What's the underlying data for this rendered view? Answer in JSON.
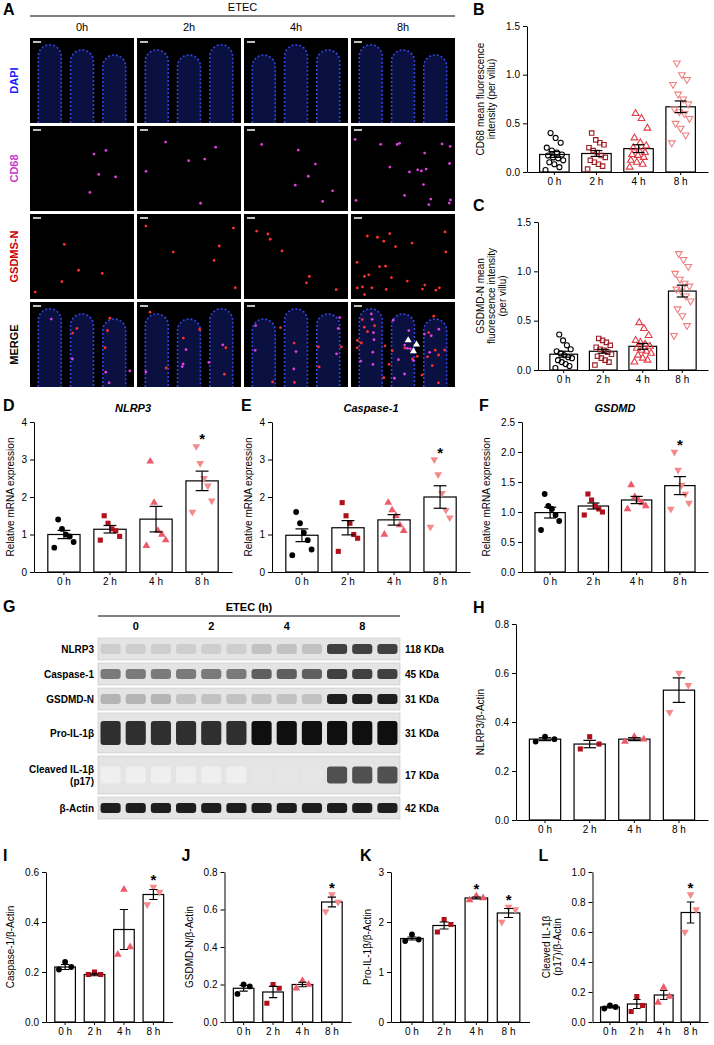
{
  "chart_data": [
    {
      "type": "bar",
      "panel": "B",
      "y_label": "CD68 mean fluorescence intensity (per villu)",
      "categories": [
        "0 h",
        "2 h",
        "4 h",
        "8 h"
      ],
      "values": [
        0.18,
        0.19,
        0.24,
        0.67
      ],
      "errors": [
        0.03,
        0.03,
        0.04,
        0.06
      ],
      "points": [
        [
          0.02,
          0.05,
          0.08,
          0.1,
          0.12,
          0.14,
          0.15,
          0.17,
          0.18,
          0.2,
          0.22,
          0.25,
          0.3,
          0.35,
          0.4
        ],
        [
          0.03,
          0.06,
          0.08,
          0.1,
          0.12,
          0.15,
          0.17,
          0.2,
          0.22,
          0.25,
          0.28,
          0.3,
          0.33,
          0.4
        ],
        [
          0.05,
          0.08,
          0.1,
          0.12,
          0.15,
          0.17,
          0.18,
          0.2,
          0.22,
          0.25,
          0.27,
          0.3,
          0.35,
          0.45,
          0.55,
          0.6
        ],
        [
          0.3,
          0.38,
          0.45,
          0.5,
          0.55,
          0.6,
          0.62,
          0.65,
          0.7,
          0.75,
          0.8,
          0.9,
          0.95,
          1.0,
          1.12
        ]
      ],
      "colors": [
        "#000000",
        "#a01c24",
        "#e23b46",
        "#f08080"
      ],
      "marker": "hollow",
      "ylim": [
        0,
        1.5
      ],
      "yticks": [
        {
          "value": 0,
          "label": "0.0"
        },
        0.5,
        {
          "value": 1,
          "label": "1.0"
        },
        1.5
      ]
    },
    {
      "type": "bar",
      "panel": "C",
      "y_label": "GSDMD-N mean fluorescence intensity (per villu)",
      "categories": [
        "0 h",
        "2 h",
        "4 h",
        "8 h"
      ],
      "values": [
        0.16,
        0.19,
        0.24,
        0.8
      ],
      "errors": [
        0.03,
        0.02,
        0.03,
        0.06
      ],
      "points": [
        [
          0.02,
          0.04,
          0.06,
          0.08,
          0.1,
          0.12,
          0.13,
          0.15,
          0.17,
          0.19,
          0.21,
          0.25,
          0.3,
          0.36
        ],
        [
          0.05,
          0.08,
          0.1,
          0.12,
          0.14,
          0.16,
          0.18,
          0.2,
          0.21,
          0.23,
          0.25,
          0.28,
          0.3,
          0.32
        ],
        [
          0.08,
          0.1,
          0.12,
          0.15,
          0.17,
          0.19,
          0.2,
          0.22,
          0.24,
          0.26,
          0.28,
          0.3,
          0.35,
          0.42,
          0.48
        ],
        [
          0.35,
          0.45,
          0.55,
          0.62,
          0.7,
          0.75,
          0.8,
          0.82,
          0.85,
          0.88,
          0.92,
          0.98,
          1.05,
          1.12,
          1.18
        ]
      ],
      "colors": [
        "#000000",
        "#a01c24",
        "#e23b46",
        "#f08080"
      ],
      "marker": "hollow",
      "ylim": [
        0,
        1.5
      ],
      "yticks": [
        {
          "value": 0,
          "label": "0.0"
        },
        0.5,
        {
          "value": 1,
          "label": "1.0"
        },
        1.5
      ]
    },
    {
      "type": "bar",
      "panel": "D",
      "title": "NLRP3",
      "y_label": "Relative mRNA expression",
      "categories": [
        "0 h",
        "2 h",
        "4 h",
        "8 h"
      ],
      "values": [
        1.0,
        1.14,
        1.41,
        2.43
      ],
      "errors": [
        0.11,
        0.1,
        0.34,
        0.26
      ],
      "points": [
        [
          0.65,
          0.8,
          0.95,
          1.0,
          1.15,
          1.4
        ],
        [
          0.85,
          0.95,
          1.1,
          1.15,
          1.3,
          1.5
        ],
        [
          0.7,
          0.85,
          1.0,
          1.1,
          1.85,
          2.95
        ],
        [
          1.6,
          1.9,
          2.3,
          2.5,
          2.9,
          3.35
        ]
      ],
      "colors": [
        "#000000",
        "#b0101c",
        "#ee5a6a",
        "#f48a8a"
      ],
      "marker": "filled",
      "ylim": [
        0,
        4
      ],
      "yticks": [
        0,
        1,
        2,
        3,
        4
      ],
      "annotations": [
        {
          "x": "8 h",
          "text": "*"
        }
      ]
    },
    {
      "type": "bar",
      "panel": "E",
      "title": "Caspase-1",
      "y_label": "Relative mRNA expression",
      "categories": [
        "0 h",
        "2 h",
        "4 h",
        "8 h"
      ],
      "values": [
        0.98,
        1.18,
        1.39,
        2.0
      ],
      "errors": [
        0.17,
        0.19,
        0.14,
        0.3
      ],
      "points": [
        [
          0.45,
          0.6,
          0.85,
          1.05,
          1.3,
          1.6
        ],
        [
          0.55,
          0.9,
          1.0,
          1.3,
          1.5,
          1.85
        ],
        [
          1.0,
          1.1,
          1.25,
          1.5,
          1.65,
          1.85
        ],
        [
          1.2,
          1.45,
          1.65,
          2.1,
          2.6,
          3.0
        ]
      ],
      "colors": [
        "#000000",
        "#b0101c",
        "#ee5a6a",
        "#f48a8a"
      ],
      "marker": "filled",
      "ylim": [
        0,
        4
      ],
      "yticks": [
        0,
        1,
        2,
        3,
        4
      ],
      "annotations": [
        {
          "x": "8 h",
          "text": "*"
        }
      ]
    },
    {
      "type": "bar",
      "panel": "F",
      "title": "GSDMD",
      "y_label": "Relative mRNA expression",
      "categories": [
        "0 h",
        "2 h",
        "4 h",
        "8 h"
      ],
      "values": [
        0.99,
        1.1,
        1.2,
        1.44
      ],
      "errors": [
        0.09,
        0.05,
        0.06,
        0.15
      ],
      "points": [
        [
          0.7,
          0.85,
          0.95,
          1.05,
          1.1,
          1.3
        ],
        [
          0.95,
          1.0,
          1.05,
          1.1,
          1.2,
          1.3
        ],
        [
          1.05,
          1.1,
          1.15,
          1.2,
          1.25,
          1.45
        ],
        [
          1.05,
          1.15,
          1.3,
          1.45,
          1.7,
          2.0
        ]
      ],
      "colors": [
        "#000000",
        "#b0101c",
        "#ee5a6a",
        "#f48a8a"
      ],
      "marker": "filled",
      "ylim": [
        0,
        2.5
      ],
      "yticks": [
        {
          "value": 0,
          "label": "0.0"
        },
        0.5,
        {
          "value": 1,
          "label": "1.0"
        },
        1.5,
        {
          "value": 2,
          "label": "2.0"
        },
        2.5
      ],
      "annotations": [
        {
          "x": "8 h",
          "text": "*"
        }
      ]
    },
    {
      "type": "bar",
      "panel": "H",
      "y_label": "NLRP3/β-Actin",
      "categories": [
        "0 h",
        "2 h",
        "4 h",
        "8 h"
      ],
      "values": [
        0.33,
        0.31,
        0.33,
        0.53
      ],
      "errors": [
        0.006,
        0.015,
        0.006,
        0.05
      ],
      "points": [
        [
          0.32,
          0.33,
          0.34
        ],
        [
          0.29,
          0.31,
          0.34
        ],
        [
          0.32,
          0.33,
          0.34
        ],
        [
          0.44,
          0.55,
          0.6
        ]
      ],
      "colors": [
        "#000000",
        "#b0101c",
        "#ee5a6a",
        "#f48a8a"
      ],
      "marker": "filled",
      "ylim": [
        0,
        0.8
      ],
      "yticks": [
        {
          "value": 0,
          "label": "0.0"
        },
        0.2,
        0.4,
        0.6,
        0.8
      ]
    },
    {
      "type": "bar",
      "panel": "I",
      "y_label": "Caspase-1/β-Actin",
      "categories": [
        "0 h",
        "2 h",
        "4 h",
        "8 h"
      ],
      "values": [
        0.22,
        0.19,
        0.37,
        0.51
      ],
      "errors": [
        0.01,
        0.005,
        0.08,
        0.02
      ],
      "points": [
        [
          0.21,
          0.22,
          0.24
        ],
        [
          0.19,
          0.19,
          0.2
        ],
        [
          0.27,
          0.3,
          0.53
        ],
        [
          0.47,
          0.52,
          0.54
        ]
      ],
      "colors": [
        "#000000",
        "#b0101c",
        "#ee5a6a",
        "#f48a8a"
      ],
      "marker": "filled",
      "ylim": [
        0,
        0.6
      ],
      "yticks": [
        {
          "value": 0,
          "label": "0.0"
        },
        0.2,
        0.4,
        0.6
      ],
      "annotations": [
        {
          "x": "8 h",
          "text": "*"
        }
      ]
    },
    {
      "type": "bar",
      "panel": "J",
      "y_label": "GSDMD-N/β-Actin",
      "categories": [
        "0 h",
        "2 h",
        "4 h",
        "8 h"
      ],
      "values": [
        0.18,
        0.16,
        0.2,
        0.64
      ],
      "errors": [
        0.015,
        0.03,
        0.012,
        0.026
      ],
      "points": [
        [
          0.15,
          0.19,
          0.2
        ],
        [
          0.1,
          0.18,
          0.2
        ],
        [
          0.18,
          0.2,
          0.22
        ],
        [
          0.59,
          0.64,
          0.68
        ]
      ],
      "colors": [
        "#000000",
        "#b0101c",
        "#ee5a6a",
        "#f48a8a"
      ],
      "marker": "filled",
      "ylim": [
        0,
        0.8
      ],
      "yticks": [
        {
          "value": 0,
          "label": "0.0"
        },
        0.2,
        0.4,
        0.6,
        0.8
      ],
      "annotations": [
        {
          "x": "8 h",
          "text": "*"
        }
      ]
    },
    {
      "type": "bar",
      "panel": "K",
      "y_label": "Pro-IL-1β/β-Actin",
      "categories": [
        "0 h",
        "2 h",
        "4 h",
        "8 h"
      ],
      "values": [
        1.67,
        1.93,
        2.48,
        2.18
      ],
      "errors": [
        0.03,
        0.07,
        0.02,
        0.09
      ],
      "points": [
        [
          1.62,
          1.65,
          1.75
        ],
        [
          1.8,
          1.95,
          2.05
        ],
        [
          2.44,
          2.48,
          2.52
        ],
        [
          2.0,
          2.25,
          2.3
        ]
      ],
      "colors": [
        "#000000",
        "#b0101c",
        "#ee5a6a",
        "#f48a8a"
      ],
      "marker": "filled",
      "ylim": [
        0,
        3
      ],
      "yticks": [
        0,
        1,
        2,
        3
      ],
      "annotations": [
        {
          "x": "4 h",
          "text": "*"
        },
        {
          "x": "8 h",
          "text": "*"
        }
      ]
    },
    {
      "type": "bar",
      "panel": "L",
      "y_label": "Cleaved IL-1β (p17)/β-Actin",
      "categories": [
        "0 h",
        "2 h",
        "4 h",
        "8 h"
      ],
      "values": [
        0.1,
        0.12,
        0.18,
        0.73
      ],
      "errors": [
        0.006,
        0.03,
        0.03,
        0.07
      ],
      "points": [
        [
          0.09,
          0.1,
          0.11
        ],
        [
          0.07,
          0.11,
          0.17
        ],
        [
          0.13,
          0.17,
          0.23
        ],
        [
          0.6,
          0.75,
          0.85
        ]
      ],
      "colors": [
        "#000000",
        "#b0101c",
        "#ee5a6a",
        "#f48a8a"
      ],
      "marker": "filled",
      "ylim": [
        0,
        1.0
      ],
      "yticks": [
        {
          "value": 0,
          "label": "0.0"
        },
        0.2,
        0.4,
        0.6,
        0.8,
        {
          "value": 1,
          "label": "1.0"
        }
      ],
      "annotations": [
        {
          "x": "8 h",
          "text": "*"
        }
      ]
    }
  ],
  "figure": {
    "panel_A": {
      "letter": "A",
      "title": "ETEC",
      "columns": [
        "0h",
        "2h",
        "4h",
        "8h"
      ],
      "rows": [
        {
          "label": "DAPI",
          "color": "#1a1aff"
        },
        {
          "label": "CD68",
          "color": "#cc33cc"
        },
        {
          "label": "GSDMS-N",
          "color": "#cc0000"
        },
        {
          "label": "MERGE",
          "color": "#000000"
        }
      ]
    },
    "panel_G": {
      "letter": "G",
      "title": "ETEC (h)",
      "groups": [
        "0",
        "2",
        "4",
        "8"
      ],
      "rows": [
        {
          "label": "NLRP3",
          "size": "118 KDa",
          "intensity": [
            0.3,
            0.3,
            0.35,
            0.8
          ]
        },
        {
          "label": "Caspase-1",
          "size": "45 KDa",
          "intensity": [
            0.6,
            0.6,
            0.7,
            0.8
          ]
        },
        {
          "label": "GSDMD-N",
          "size": "31 KDa",
          "intensity": [
            0.4,
            0.35,
            0.35,
            0.9
          ]
        },
        {
          "label": "Pro-IL-1β",
          "size": "31 KDa",
          "intensity": [
            0.85,
            0.85,
            0.95,
            0.95
          ]
        },
        {
          "label": "Cleaved IL-1β (p17)",
          "size": "17 KDa",
          "intensity": [
            0.12,
            0.12,
            0.18,
            0.75
          ]
        },
        {
          "label": "β-Actin",
          "size": "42 KDa",
          "intensity": [
            0.9,
            0.9,
            0.9,
            0.9
          ]
        }
      ]
    }
  }
}
